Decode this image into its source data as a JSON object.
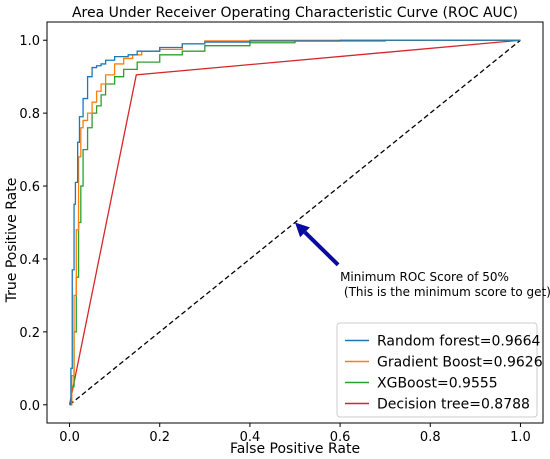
{
  "chart_data": {
    "type": "line",
    "title": "Area Under Receiver Operating Characteristic Curve (ROC AUC)",
    "xlabel": "False Positive Rate",
    "ylabel": "True Positive Rate",
    "xlim": [
      -0.05,
      1.05
    ],
    "ylim": [
      -0.05,
      1.05
    ],
    "xticks": [
      "0.0",
      "0.2",
      "0.4",
      "0.6",
      "0.8",
      "1.0"
    ],
    "yticks": [
      "0.0",
      "0.2",
      "0.4",
      "0.6",
      "0.8",
      "1.0"
    ],
    "legend_position": "lower-right",
    "series": [
      {
        "name": "Random forest=0.9664",
        "color": "#1f77b4",
        "x": [
          0.0,
          0.003,
          0.006,
          0.01,
          0.013,
          0.018,
          0.022,
          0.03,
          0.04,
          0.05,
          0.06,
          0.07,
          0.08,
          0.1,
          0.13,
          0.15,
          0.2,
          0.25,
          0.3,
          0.4,
          0.6,
          1.0
        ],
        "y": [
          0.0,
          0.1,
          0.37,
          0.55,
          0.61,
          0.72,
          0.79,
          0.84,
          0.9,
          0.925,
          0.93,
          0.935,
          0.945,
          0.955,
          0.96,
          0.97,
          0.98,
          0.99,
          0.995,
          0.998,
          1.0,
          1.0
        ]
      },
      {
        "name": "Gradient Boost=0.9626",
        "color": "#ff7f0e",
        "x": [
          0.0,
          0.005,
          0.01,
          0.015,
          0.02,
          0.025,
          0.03,
          0.04,
          0.05,
          0.06,
          0.07,
          0.08,
          0.1,
          0.12,
          0.14,
          0.16,
          0.2,
          0.25,
          0.3,
          0.4,
          0.6,
          1.0
        ],
        "y": [
          0.0,
          0.08,
          0.3,
          0.48,
          0.68,
          0.76,
          0.78,
          0.8,
          0.83,
          0.86,
          0.88,
          0.905,
          0.935,
          0.95,
          0.96,
          0.97,
          0.975,
          0.99,
          0.998,
          1.0,
          1.0,
          1.0
        ]
      },
      {
        "name": "XGBoost=0.9555",
        "color": "#2ca02c",
        "x": [
          0.0,
          0.005,
          0.01,
          0.015,
          0.02,
          0.025,
          0.03,
          0.04,
          0.05,
          0.06,
          0.07,
          0.08,
          0.1,
          0.12,
          0.15,
          0.2,
          0.25,
          0.3,
          0.4,
          0.5,
          0.7,
          1.0
        ],
        "y": [
          0.0,
          0.05,
          0.2,
          0.35,
          0.5,
          0.6,
          0.7,
          0.76,
          0.8,
          0.82,
          0.85,
          0.88,
          0.9,
          0.92,
          0.94,
          0.96,
          0.97,
          0.985,
          0.993,
          0.998,
          1.0,
          1.0
        ]
      },
      {
        "name": "Decision tree=0.8788",
        "color": "#d62728",
        "x": [
          0.0,
          0.148,
          1.0
        ],
        "y": [
          0.0,
          0.905,
          1.0
        ]
      }
    ],
    "reference_line": {
      "color": "#000000",
      "style": "dashed",
      "x": [
        0.0,
        1.0
      ],
      "y": [
        0.0,
        1.0
      ]
    },
    "annotation": {
      "text_line1": "Minimum ROC Score of 50%",
      "text_line2": " (This is the minimum score to get)",
      "arrow_color": "#0a0aa0",
      "point": [
        0.5,
        0.5
      ],
      "text_at": [
        0.6,
        0.34
      ]
    }
  }
}
